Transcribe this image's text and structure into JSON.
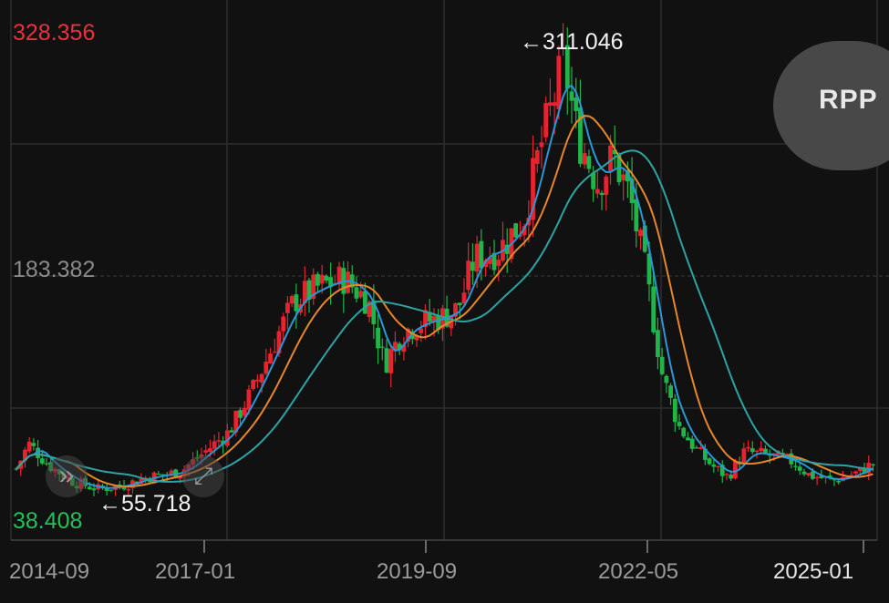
{
  "chart_data": {
    "type": "candlestick",
    "y_axis": {
      "max_label": "328.356",
      "mid_label": "183.382",
      "min_label": "38.408",
      "ylim": [
        38.408,
        328.356
      ]
    },
    "x_ticks": [
      "2014-09",
      "2017-01",
      "2019-09",
      "2022-05",
      "2025-01"
    ],
    "annotations": {
      "high": "311.046",
      "low": "55.718"
    },
    "price_path": [
      [
        2014.6,
        70
      ],
      [
        2014.75,
        85
      ],
      [
        2015.0,
        72
      ],
      [
        2015.3,
        62
      ],
      [
        2015.6,
        58
      ],
      [
        2015.9,
        60
      ],
      [
        2016.2,
        65
      ],
      [
        2016.6,
        68
      ],
      [
        2016.9,
        80
      ],
      [
        2017.2,
        92
      ],
      [
        2017.5,
        118
      ],
      [
        2017.8,
        150
      ],
      [
        2018.0,
        170
      ],
      [
        2018.3,
        178
      ],
      [
        2018.6,
        183
      ],
      [
        2018.9,
        170
      ],
      [
        2019.1,
        132
      ],
      [
        2019.3,
        150
      ],
      [
        2019.5,
        156
      ],
      [
        2019.8,
        160
      ],
      [
        2020.0,
        165
      ],
      [
        2020.2,
        195
      ],
      [
        2020.5,
        200
      ],
      [
        2020.8,
        218
      ],
      [
        2021.0,
        260
      ],
      [
        2021.2,
        295
      ],
      [
        2021.3,
        311
      ],
      [
        2021.45,
        270
      ],
      [
        2021.7,
        240
      ],
      [
        2021.9,
        255
      ],
      [
        2022.1,
        232
      ],
      [
        2022.3,
        185
      ],
      [
        2022.5,
        125
      ],
      [
        2022.7,
        95
      ],
      [
        2022.9,
        82
      ],
      [
        2023.1,
        72
      ],
      [
        2023.3,
        65
      ],
      [
        2023.5,
        80
      ],
      [
        2023.8,
        78
      ],
      [
        2024.1,
        74
      ],
      [
        2024.3,
        66
      ],
      [
        2024.6,
        63
      ],
      [
        2024.9,
        68
      ],
      [
        2025.1,
        74
      ]
    ],
    "ma_colors": {
      "short": "#2b97d8",
      "medium": "#e8862c",
      "long": "#2da4a4"
    },
    "colors": {
      "up": "#e8232f",
      "down": "#1fb54a"
    },
    "rpp_label": "RPP"
  }
}
